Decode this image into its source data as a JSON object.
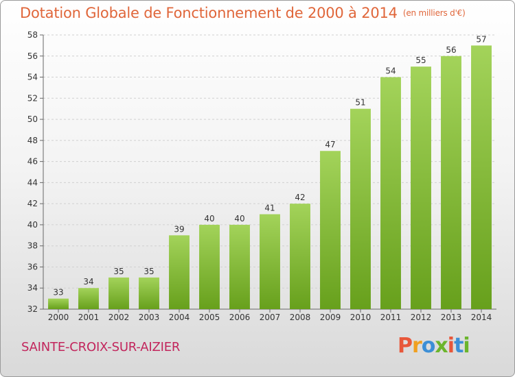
{
  "header": {
    "title": "Dotation Globale de Fonctionnement de 2000 à 2014",
    "subtitle": "(en milliers d'€)"
  },
  "footer": {
    "commune": "SAINTE-CROIX-SUR-AIZIER",
    "logo_text": "Proxiti"
  },
  "colors": {
    "title": "#e0663a",
    "commune": "#c2255c",
    "bar_light": "#9fd154",
    "bar_dark": "#6aa21f",
    "logo": [
      "#e8573a",
      "#f0a020",
      "#3d8fd6",
      "#6bb52c",
      "#e8573a",
      "#3d8fd6",
      "#6bb52c"
    ]
  },
  "chart_data": {
    "type": "bar",
    "categories": [
      "2000",
      "2001",
      "2002",
      "2003",
      "2004",
      "2005",
      "2006",
      "2007",
      "2008",
      "2009",
      "2010",
      "2011",
      "2012",
      "2013",
      "2014"
    ],
    "values": [
      33,
      34,
      35,
      35,
      39,
      40,
      40,
      41,
      42,
      47,
      51,
      54,
      55,
      56,
      57
    ],
    "ylim": [
      32,
      58
    ],
    "yticks": [
      32,
      34,
      36,
      38,
      40,
      42,
      44,
      46,
      48,
      50,
      52,
      54,
      56,
      58
    ],
    "grid": true,
    "data_labels": true
  }
}
